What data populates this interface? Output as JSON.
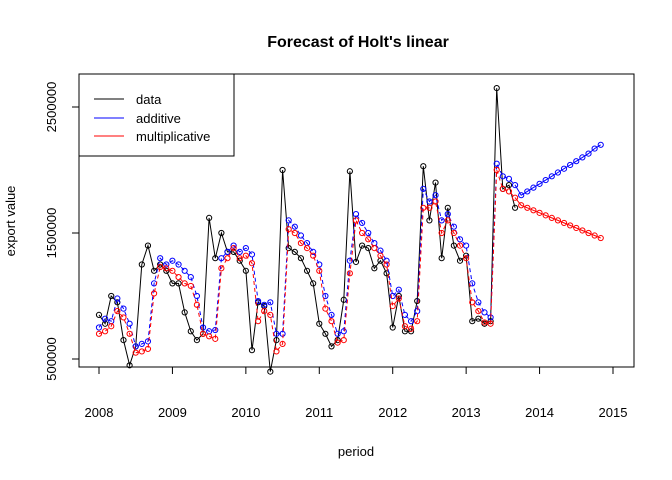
{
  "chart_data": {
    "type": "line",
    "title": "Forecast of Holt's linear",
    "xlabel": "period",
    "ylabel": "export value",
    "xlim": [
      2008,
      2015
    ],
    "ylim": [
      400000,
      2700000
    ],
    "x_ticks": [
      "2008",
      "2009",
      "2010",
      "2011",
      "2012",
      "2013",
      "2014",
      "2015"
    ],
    "y_ticks": [
      "500000",
      "1500000",
      "2500000"
    ],
    "grid": false,
    "legend_position": "top-left",
    "start": 2008.0,
    "period": 0.08333,
    "series": [
      {
        "name": "data",
        "color": "#000000",
        "values": [
          850000,
          780000,
          1000000,
          950000,
          650000,
          450000,
          600000,
          1250000,
          1400000,
          1200000,
          1250000,
          1200000,
          1100000,
          1100000,
          870000,
          720000,
          650000,
          700000,
          1620000,
          1300000,
          1500000,
          1350000,
          1350000,
          1280000,
          1200000,
          570000,
          950000,
          920000,
          400000,
          650000,
          2000000,
          1380000,
          1350000,
          1300000,
          1200000,
          1100000,
          780000,
          700000,
          600000,
          650000,
          970000,
          1990000,
          1270000,
          1400000,
          1380000,
          1220000,
          1280000,
          1180000,
          750000,
          1000000,
          720000,
          720000,
          960000,
          2030000,
          1600000,
          1900000,
          1300000,
          1700000,
          1400000,
          1280000,
          1320000,
          800000,
          820000,
          780000,
          800000,
          2650000,
          1850000,
          1880000,
          1700000
        ]
      },
      {
        "name": "additive",
        "color": "#0000ff",
        "values": [
          750000,
          820000,
          800000,
          980000,
          900000,
          780000,
          600000,
          620000,
          640000,
          1100000,
          1300000,
          1250000,
          1280000,
          1250000,
          1200000,
          1150000,
          1000000,
          750000,
          720000,
          730000,
          1300000,
          1350000,
          1400000,
          1350000,
          1380000,
          1330000,
          960000,
          930000,
          950000,
          700000,
          700000,
          1600000,
          1550000,
          1480000,
          1420000,
          1350000,
          1250000,
          1000000,
          850000,
          700000,
          720000,
          1280000,
          1650000,
          1580000,
          1500000,
          1420000,
          1360000,
          1280000,
          1000000,
          1050000,
          850000,
          800000,
          880000,
          1850000,
          1750000,
          1800000,
          1600000,
          1650000,
          1550000,
          1450000,
          1400000,
          1100000,
          950000,
          870000,
          830000,
          2050000,
          1950000,
          1930000,
          1880000
        ],
        "forecast": [
          1800000,
          1830000,
          1860000,
          1890000,
          1920000,
          1950000,
          1980000,
          2010000,
          2040000,
          2070000,
          2100000,
          2130000,
          2170000,
          2200000
        ]
      },
      {
        "name": "multiplicative",
        "color": "#ff0000",
        "values": [
          700000,
          720000,
          760000,
          880000,
          830000,
          700000,
          550000,
          560000,
          580000,
          1020000,
          1230000,
          1220000,
          1200000,
          1150000,
          1100000,
          1080000,
          930000,
          700000,
          680000,
          660000,
          1220000,
          1300000,
          1380000,
          1300000,
          1320000,
          1260000,
          800000,
          880000,
          850000,
          560000,
          620000,
          1530000,
          1500000,
          1420000,
          1380000,
          1320000,
          1200000,
          900000,
          800000,
          630000,
          650000,
          1180000,
          1600000,
          1500000,
          1450000,
          1380000,
          1320000,
          1250000,
          920000,
          980000,
          760000,
          740000,
          800000,
          1700000,
          1700000,
          1750000,
          1500000,
          1600000,
          1500000,
          1400000,
          1300000,
          950000,
          880000,
          790000,
          780000,
          2000000,
          1850000,
          1830000,
          1780000
        ],
        "forecast": [
          1720000,
          1700000,
          1680000,
          1660000,
          1640000,
          1620000,
          1600000,
          1580000,
          1560000,
          1540000,
          1520000,
          1500000,
          1480000,
          1460000
        ]
      }
    ]
  }
}
